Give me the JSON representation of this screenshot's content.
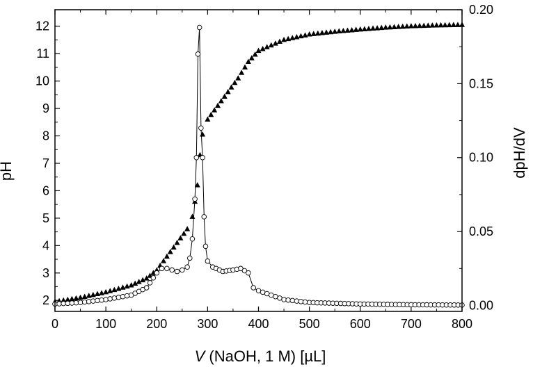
{
  "chart_data": {
    "type": "scatter",
    "x_axis": {
      "label_var": "V",
      "label_rest": " (NaOH, 1 M) [µL]",
      "range": [
        0,
        800
      ],
      "ticks": [
        "0",
        "100",
        "200",
        "300",
        "400",
        "500",
        "600",
        "700",
        "800"
      ]
    },
    "y_axis_left": {
      "label": "pH",
      "range": [
        1.6,
        12.6
      ],
      "ticks": [
        "2",
        "3",
        "4",
        "5",
        "6",
        "7",
        "8",
        "9",
        "10",
        "11",
        "12"
      ]
    },
    "y_axis_right": {
      "label": "dpH/dV",
      "range": [
        -0.004,
        0.2
      ],
      "ticks": [
        "0.00",
        "0.05",
        "0.10",
        "0.15",
        "0.20"
      ]
    },
    "grid": false,
    "legend": "none",
    "series": [
      {
        "axis": "left",
        "marker": "filled-triangle",
        "color": "#000000",
        "points": [
          [
            0,
            1.95
          ],
          [
            50,
            2.1
          ],
          [
            100,
            2.3
          ],
          [
            150,
            2.55
          ],
          [
            180,
            2.8
          ],
          [
            200,
            3.1
          ],
          [
            220,
            3.6
          ],
          [
            240,
            4.1
          ],
          [
            260,
            4.6
          ],
          [
            270,
            5.05
          ],
          [
            275,
            5.6
          ],
          [
            280,
            6.2
          ],
          [
            285,
            7.3
          ],
          [
            290,
            8.05
          ],
          [
            300,
            8.6
          ],
          [
            320,
            9.1
          ],
          [
            340,
            9.6
          ],
          [
            360,
            10.1
          ],
          [
            380,
            10.7
          ],
          [
            400,
            11.1
          ],
          [
            450,
            11.5
          ],
          [
            500,
            11.7
          ],
          [
            550,
            11.8
          ],
          [
            600,
            11.88
          ],
          [
            650,
            11.95
          ],
          [
            700,
            12.0
          ],
          [
            750,
            12.03
          ],
          [
            800,
            12.05
          ]
        ]
      },
      {
        "axis": "right",
        "marker": "open-circle",
        "color": "#000000",
        "line": true,
        "points": [
          [
            0,
            0.001
          ],
          [
            50,
            0.002
          ],
          [
            100,
            0.004
          ],
          [
            150,
            0.007
          ],
          [
            180,
            0.012
          ],
          [
            200,
            0.022
          ],
          [
            210,
            0.025
          ],
          [
            220,
            0.025
          ],
          [
            230,
            0.024
          ],
          [
            240,
            0.023
          ],
          [
            250,
            0.024
          ],
          [
            260,
            0.026
          ],
          [
            265,
            0.032
          ],
          [
            270,
            0.045
          ],
          [
            275,
            0.072
          ],
          [
            278,
            0.1
          ],
          [
            281,
            0.17
          ],
          [
            284,
            0.188
          ],
          [
            287,
            0.12
          ],
          [
            290,
            0.1
          ],
          [
            293,
            0.06
          ],
          [
            296,
            0.04
          ],
          [
            300,
            0.03
          ],
          [
            310,
            0.026
          ],
          [
            330,
            0.023
          ],
          [
            350,
            0.024
          ],
          [
            365,
            0.025
          ],
          [
            380,
            0.022
          ],
          [
            390,
            0.012
          ],
          [
            400,
            0.01
          ],
          [
            450,
            0.004
          ],
          [
            500,
            0.002
          ],
          [
            600,
            0.001
          ],
          [
            700,
            0.0005
          ],
          [
            800,
            0.0003
          ]
        ]
      }
    ]
  }
}
